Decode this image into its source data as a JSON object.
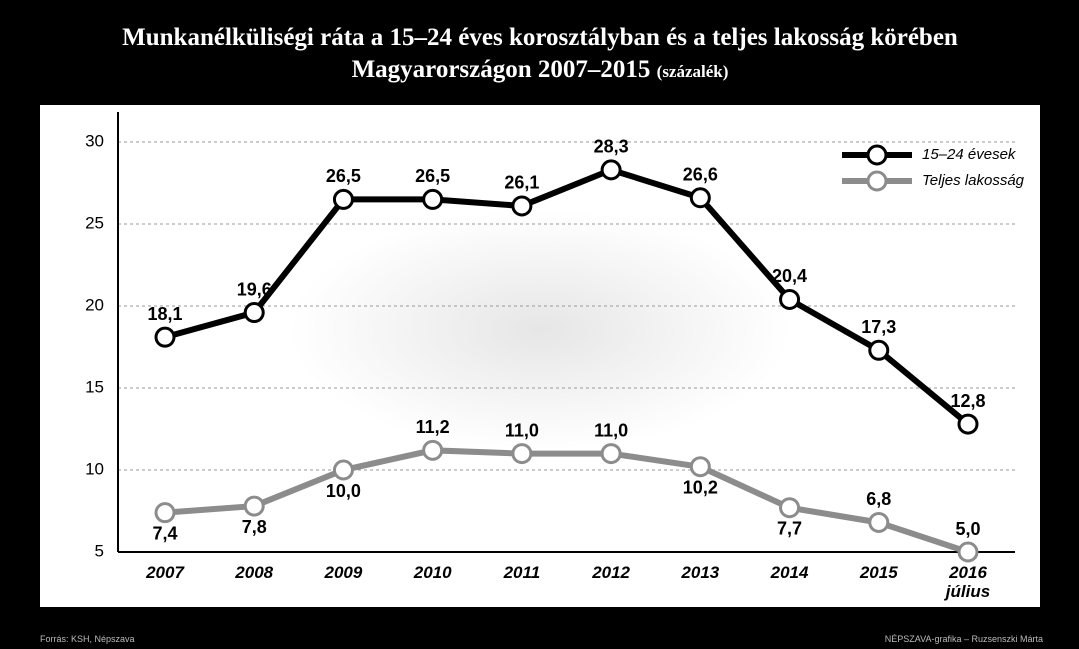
{
  "chart_data": {
    "type": "line",
    "title": "Munkanélküliségi ráta a 15–24 éves korosztályban és a teljes lakosság körében Magyarországon 2007–2015",
    "unit": "(százalék)",
    "source": "Forrás: KSH, Népszava",
    "credit": "NÉPSZAVA-grafika – Ruzsenszki Márta",
    "categories": [
      "2007",
      "2008",
      "2009",
      "2010",
      "2011",
      "2012",
      "2013",
      "2014",
      "2015",
      "2016 július"
    ],
    "series": [
      {
        "name": "15–24 évesek",
        "color": "#000000",
        "values": [
          18.1,
          19.6,
          26.5,
          26.5,
          26.1,
          28.3,
          26.6,
          20.4,
          17.3,
          12.8
        ],
        "value_labels": [
          "18,1",
          "19,6",
          "26,5",
          "26,5",
          "26,1",
          "28,3",
          "26,6",
          "20,4",
          "17,3",
          "12,8"
        ]
      },
      {
        "name": "Teljes lakosság",
        "color": "#8c8c8c",
        "values": [
          7.4,
          7.8,
          10.0,
          11.2,
          11.0,
          11.0,
          10.2,
          7.7,
          6.8,
          5.0
        ],
        "value_labels": [
          "7,4",
          "7,8",
          "10,0",
          "11,2",
          "11,0",
          "11,0",
          "10,2",
          "7,7",
          "6,8",
          "5,0"
        ]
      }
    ],
    "ylim": [
      5,
      30
    ],
    "yticks": [
      5,
      10,
      15,
      20,
      25,
      30
    ],
    "grid": true,
    "legend": "top-right"
  }
}
